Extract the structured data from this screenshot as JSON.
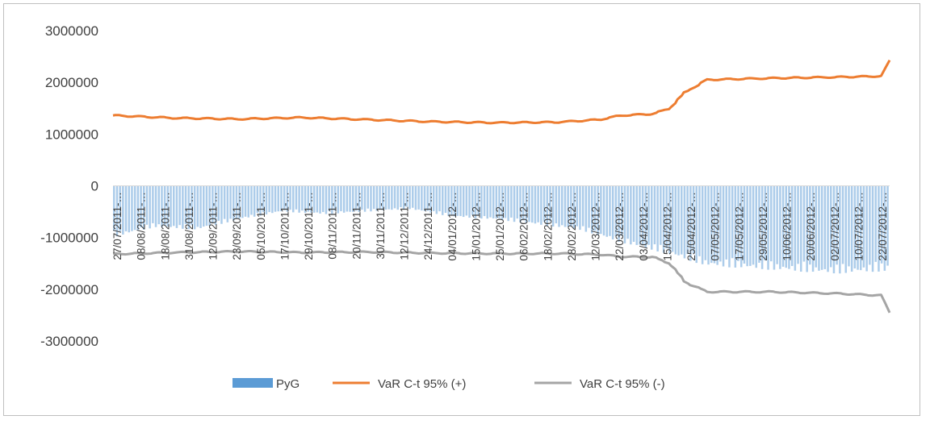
{
  "chart_data": {
    "type": "bar",
    "ylim": [
      -3000000,
      3000000
    ],
    "y_ticks": [
      3000000,
      2000000,
      1000000,
      0,
      -1000000,
      -2000000,
      -3000000
    ],
    "y_tick_labels": [
      "3000000",
      "2000000",
      "1000000",
      "0",
      "-1000000",
      "-2000000",
      "-3000000"
    ],
    "x_range": [
      "2011-07-27",
      "2012-07-27"
    ],
    "x_tick_labels": [
      "27/07/2011-…",
      "08/08/2011-…",
      "18/08/2011-…",
      "31/08/2011-…",
      "12/09/2011-…",
      "23/09/2011-…",
      "05/10/2011-…",
      "17/10/2011-…",
      "29/10/2011-…",
      "08/11/2011-…",
      "20/11/2011-…",
      "30/11/2011-…",
      "12/12/2011-…",
      "24/12/2011-…",
      "04/01/2012-…",
      "15/01/2012-…",
      "25/01/2012-…",
      "06/02/2012-…",
      "18/02/2012-…",
      "28/02/2012-…",
      "12/03/2012-…",
      "22/03/2012-…",
      "03/04/2012-…",
      "15/04/2012-…",
      "25/04/2012-…",
      "07/05/2012-…",
      "17/05/2012-…",
      "29/05/2012-…",
      "10/06/2012-…",
      "20/06/2012-…",
      "02/07/2012-…",
      "10/07/2012-…",
      "22/07/2012-…"
    ],
    "legend_position": "bottom",
    "series": [
      {
        "name": "PyG",
        "kind": "bar",
        "color": "#9dc3e6",
        "x": [
          "2011-07-27",
          "2011-08-16",
          "2011-09-05",
          "2011-09-25",
          "2011-10-15",
          "2011-11-04",
          "2011-11-24",
          "2011-12-14",
          "2012-01-03",
          "2012-01-23",
          "2012-02-12",
          "2012-03-03",
          "2012-03-23",
          "2012-04-12",
          "2012-05-02",
          "2012-05-22",
          "2012-06-11",
          "2012-07-01",
          "2012-07-27"
        ],
        "values": [
          -1000000,
          -800000,
          -850000,
          -650000,
          -500000,
          -550000,
          -500000,
          -450000,
          -600000,
          -650000,
          -750000,
          -850000,
          -1100000,
          -1300000,
          -1550000,
          -1600000,
          -1650000,
          -1700000,
          -1650000
        ]
      },
      {
        "name": "VaR  C-t 95% (+)",
        "kind": "line",
        "color": "#ed7d31",
        "x": [
          "2011-07-27",
          "2011-08-26",
          "2011-09-25",
          "2011-10-25",
          "2011-11-24",
          "2011-12-24",
          "2012-01-23",
          "2012-02-22",
          "2012-03-13",
          "2012-03-23",
          "2012-04-07",
          "2012-04-15",
          "2012-04-22",
          "2012-05-02",
          "2012-06-01",
          "2012-07-01",
          "2012-07-24",
          "2012-07-27"
        ],
        "values": [
          1360000,
          1310000,
          1290000,
          1320000,
          1280000,
          1240000,
          1220000,
          1230000,
          1280000,
          1360000,
          1390000,
          1500000,
          1800000,
          2050000,
          2080000,
          2100000,
          2120000,
          2420000
        ]
      },
      {
        "name": "VaR  C-t 95% (-)",
        "kind": "line",
        "color": "#a5a5a5",
        "x": [
          "2011-07-27",
          "2011-08-26",
          "2011-09-25",
          "2011-10-25",
          "2011-11-24",
          "2011-12-24",
          "2012-01-23",
          "2012-02-22",
          "2012-03-13",
          "2012-03-23",
          "2012-04-07",
          "2012-04-15",
          "2012-04-22",
          "2012-05-02",
          "2012-06-01",
          "2012-07-01",
          "2012-07-24",
          "2012-07-27"
        ],
        "values": [
          -1320000,
          -1290000,
          -1270000,
          -1290000,
          -1280000,
          -1300000,
          -1310000,
          -1310000,
          -1330000,
          -1370000,
          -1380000,
          -1500000,
          -1850000,
          -2050000,
          -2050000,
          -2080000,
          -2120000,
          -2450000
        ]
      }
    ]
  }
}
